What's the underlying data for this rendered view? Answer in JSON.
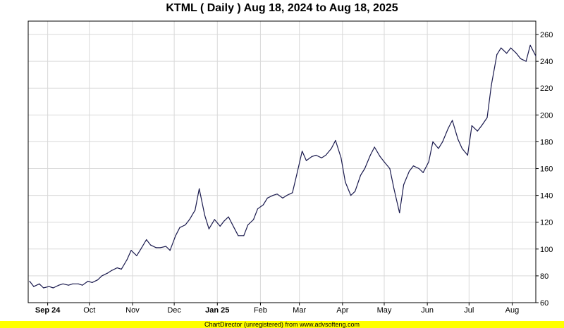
{
  "title": "KTML ( Daily ) Aug 18, 2024 to Aug 18, 2025",
  "footer": "ChartDirector (unregistered) from www.advsofteng.com",
  "colors": {
    "line": "#1a1a4e",
    "grid": "#d9d9d9",
    "frame": "#000000",
    "footer_bg": "#ffff00"
  },
  "chart_data": {
    "type": "line",
    "title": "KTML ( Daily ) Aug 18, 2024 to Aug 18, 2025",
    "xlabel": "",
    "ylabel": "",
    "ylim": [
      60,
      270
    ],
    "y_ticks": [
      60,
      80,
      100,
      120,
      140,
      160,
      180,
      200,
      220,
      240,
      260
    ],
    "y_axis_position": "right",
    "grid": true,
    "x_ticks": [
      {
        "label": "Sep 24",
        "date": "2024-09-01"
      },
      {
        "label": "Oct",
        "date": "2024-10-01"
      },
      {
        "label": "Nov",
        "date": "2024-11-01"
      },
      {
        "label": "Dec",
        "date": "2024-12-01"
      },
      {
        "label": "Jan 25",
        "date": "2025-01-01"
      },
      {
        "label": "Feb",
        "date": "2025-02-01"
      },
      {
        "label": "Mar",
        "date": "2025-03-01"
      },
      {
        "label": "Apr",
        "date": "2025-04-01"
      },
      {
        "label": "May",
        "date": "2025-05-01"
      },
      {
        "label": "Jun",
        "date": "2025-06-01"
      },
      {
        "label": "Jul",
        "date": "2025-07-01"
      },
      {
        "label": "Aug",
        "date": "2025-08-01"
      }
    ],
    "series": [
      {
        "x": [
          "2024-08-19",
          "2024-08-22",
          "2024-08-26",
          "2024-08-29",
          "2024-09-02",
          "2024-09-05",
          "2024-09-09",
          "2024-09-12",
          "2024-09-16",
          "2024-09-19",
          "2024-09-23",
          "2024-09-26",
          "2024-09-30",
          "2024-10-03",
          "2024-10-07",
          "2024-10-10",
          "2024-10-14",
          "2024-10-17",
          "2024-10-21",
          "2024-10-24",
          "2024-10-28",
          "2024-10-31",
          "2024-11-04",
          "2024-11-07",
          "2024-11-11",
          "2024-11-14",
          "2024-11-18",
          "2024-11-21",
          "2024-11-25",
          "2024-11-28",
          "2024-12-02",
          "2024-12-05",
          "2024-12-09",
          "2024-12-12",
          "2024-12-16",
          "2024-12-19",
          "2024-12-23",
          "2024-12-26",
          "2024-12-30",
          "2025-01-03",
          "2025-01-06",
          "2025-01-09",
          "2025-01-13",
          "2025-01-16",
          "2025-01-20",
          "2025-01-23",
          "2025-01-27",
          "2025-01-30",
          "2025-02-03",
          "2025-02-06",
          "2025-02-10",
          "2025-02-13",
          "2025-02-17",
          "2025-02-20",
          "2025-02-24",
          "2025-02-27",
          "2025-03-03",
          "2025-03-06",
          "2025-03-10",
          "2025-03-13",
          "2025-03-17",
          "2025-03-20",
          "2025-03-24",
          "2025-03-27",
          "2025-03-31",
          "2025-04-03",
          "2025-04-07",
          "2025-04-10",
          "2025-04-14",
          "2025-04-17",
          "2025-04-21",
          "2025-04-24",
          "2025-04-28",
          "2025-05-01",
          "2025-05-05",
          "2025-05-08",
          "2025-05-12",
          "2025-05-15",
          "2025-05-19",
          "2025-05-22",
          "2025-05-26",
          "2025-05-29",
          "2025-06-02",
          "2025-06-05",
          "2025-06-09",
          "2025-06-12",
          "2025-06-16",
          "2025-06-19",
          "2025-06-23",
          "2025-06-26",
          "2025-06-30",
          "2025-07-03",
          "2025-07-07",
          "2025-07-10",
          "2025-07-14",
          "2025-07-17",
          "2025-07-21",
          "2025-07-24",
          "2025-07-28",
          "2025-07-31",
          "2025-08-04",
          "2025-08-07",
          "2025-08-11",
          "2025-08-14",
          "2025-08-18"
        ],
        "values": [
          76,
          72,
          74,
          71,
          72,
          71,
          73,
          74,
          73,
          74,
          74,
          73,
          76,
          75,
          77,
          80,
          82,
          84,
          86,
          85,
          92,
          99,
          95,
          100,
          107,
          103,
          101,
          101,
          102,
          99,
          110,
          116,
          118,
          122,
          129,
          145,
          125,
          115,
          122,
          117,
          121,
          124,
          116,
          110,
          110,
          118,
          122,
          130,
          133,
          138,
          140,
          141,
          138,
          140,
          142,
          155,
          173,
          166,
          169,
          170,
          168,
          170,
          175,
          181,
          168,
          150,
          140,
          143,
          155,
          160,
          170,
          176,
          169,
          165,
          160,
          145,
          127,
          148,
          158,
          162,
          160,
          157,
          165,
          180,
          175,
          180,
          190,
          196,
          182,
          175,
          170,
          192,
          188,
          192,
          198,
          222,
          245,
          250,
          246,
          250,
          246,
          242,
          240,
          252,
          244
        ]
      }
    ]
  }
}
